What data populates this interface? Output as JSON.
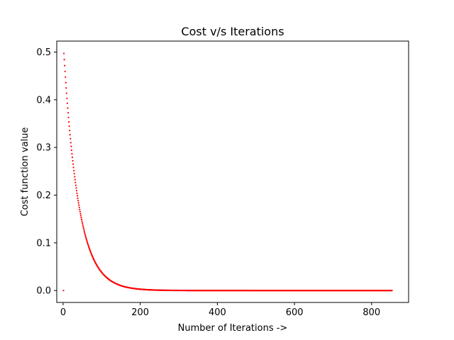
{
  "chart_data": {
    "type": "scatter",
    "title": "Cost v/s Iterations",
    "xlabel": "Number of Iterations ->",
    "ylabel": "Cost function value",
    "xlim": [
      -16.5,
      896
    ],
    "ylim": [
      -0.025,
      0.523
    ],
    "x_ticks": [
      0,
      200,
      400,
      600,
      800
    ],
    "x_tick_labels": [
      "0",
      "200",
      "400",
      "600",
      "800"
    ],
    "y_ticks": [
      0.0,
      0.1,
      0.2,
      0.3,
      0.4,
      0.5
    ],
    "y_tick_labels": [
      "0.0",
      "0.1",
      "0.2",
      "0.3",
      "0.4",
      "0.5"
    ],
    "grid": false,
    "legend": "none",
    "series": [
      {
        "color": "#ff0000",
        "marker": "dot",
        "outlier": {
          "x": 1,
          "y": 0.0
        },
        "model": {
          "form": "exponential-decay",
          "y0": 0.497,
          "decay_per_iteration": 0.0262,
          "x_start": 2,
          "x_end": 853
        },
        "points": [
          {
            "x": 2,
            "y": 0.497
          },
          {
            "x": 10,
            "y": 0.402
          },
          {
            "x": 20,
            "y": 0.302
          },
          {
            "x": 30,
            "y": 0.226
          },
          {
            "x": 40,
            "y": 0.17
          },
          {
            "x": 50,
            "y": 0.127
          },
          {
            "x": 60,
            "y": 0.096
          },
          {
            "x": 70,
            "y": 0.072
          },
          {
            "x": 80,
            "y": 0.054
          },
          {
            "x": 90,
            "y": 0.04
          },
          {
            "x": 100,
            "y": 0.03
          },
          {
            "x": 120,
            "y": 0.017
          },
          {
            "x": 140,
            "y": 0.01
          },
          {
            "x": 160,
            "y": 0.005
          },
          {
            "x": 180,
            "y": 0.003
          },
          {
            "x": 200,
            "y": 0.002
          },
          {
            "x": 250,
            "y": 0.0005
          },
          {
            "x": 300,
            "y": 0.0
          },
          {
            "x": 400,
            "y": 0.0
          },
          {
            "x": 500,
            "y": 0.0
          },
          {
            "x": 600,
            "y": 0.0
          },
          {
            "x": 700,
            "y": 0.0
          },
          {
            "x": 800,
            "y": 0.0
          },
          {
            "x": 853,
            "y": 0.0
          }
        ]
      }
    ]
  }
}
